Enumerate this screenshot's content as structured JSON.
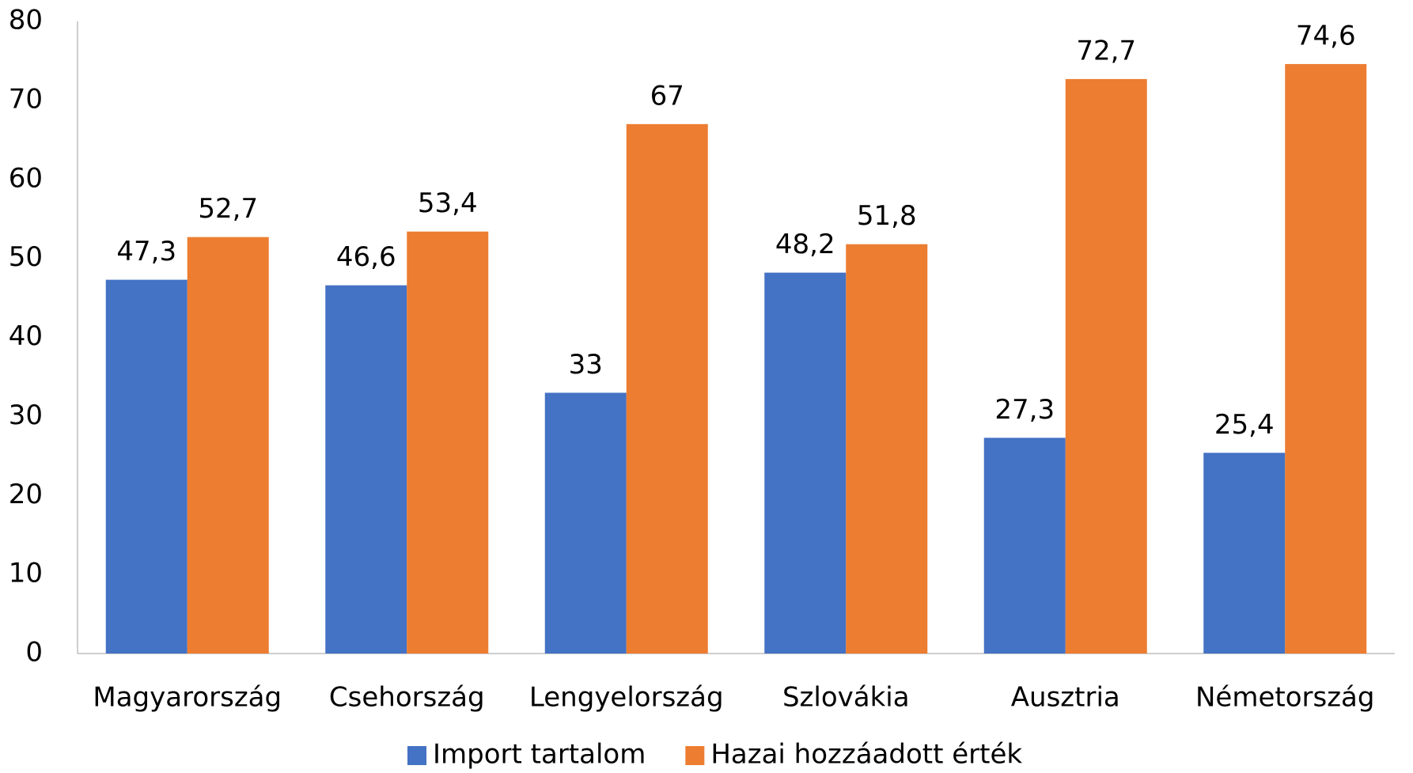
{
  "chart_data": {
    "type": "bar",
    "categories": [
      "Magyarország",
      "Csehország",
      "Lengyelország",
      "Szlovákia",
      "Ausztria",
      "Németország"
    ],
    "series": [
      {
        "name": "Import tartalom",
        "color": "#4472c4",
        "values": [
          47.3,
          46.6,
          33,
          48.2,
          27.3,
          25.4
        ],
        "value_labels": [
          "47,3",
          "46,6",
          "33",
          "48,2",
          "27,3",
          "25,4"
        ]
      },
      {
        "name": "Hazai hozzáadott érték",
        "color": "#ed7d31",
        "values": [
          52.7,
          53.4,
          67,
          51.8,
          72.7,
          74.6
        ],
        "value_labels": [
          "52,7",
          "53,4",
          "67",
          "51,8",
          "72,7",
          "74,6"
        ]
      }
    ],
    "ylim": [
      0,
      80
    ],
    "yticks": [
      0,
      10,
      20,
      30,
      40,
      50,
      60,
      70,
      80
    ],
    "grid": false,
    "legend": "bottom"
  }
}
